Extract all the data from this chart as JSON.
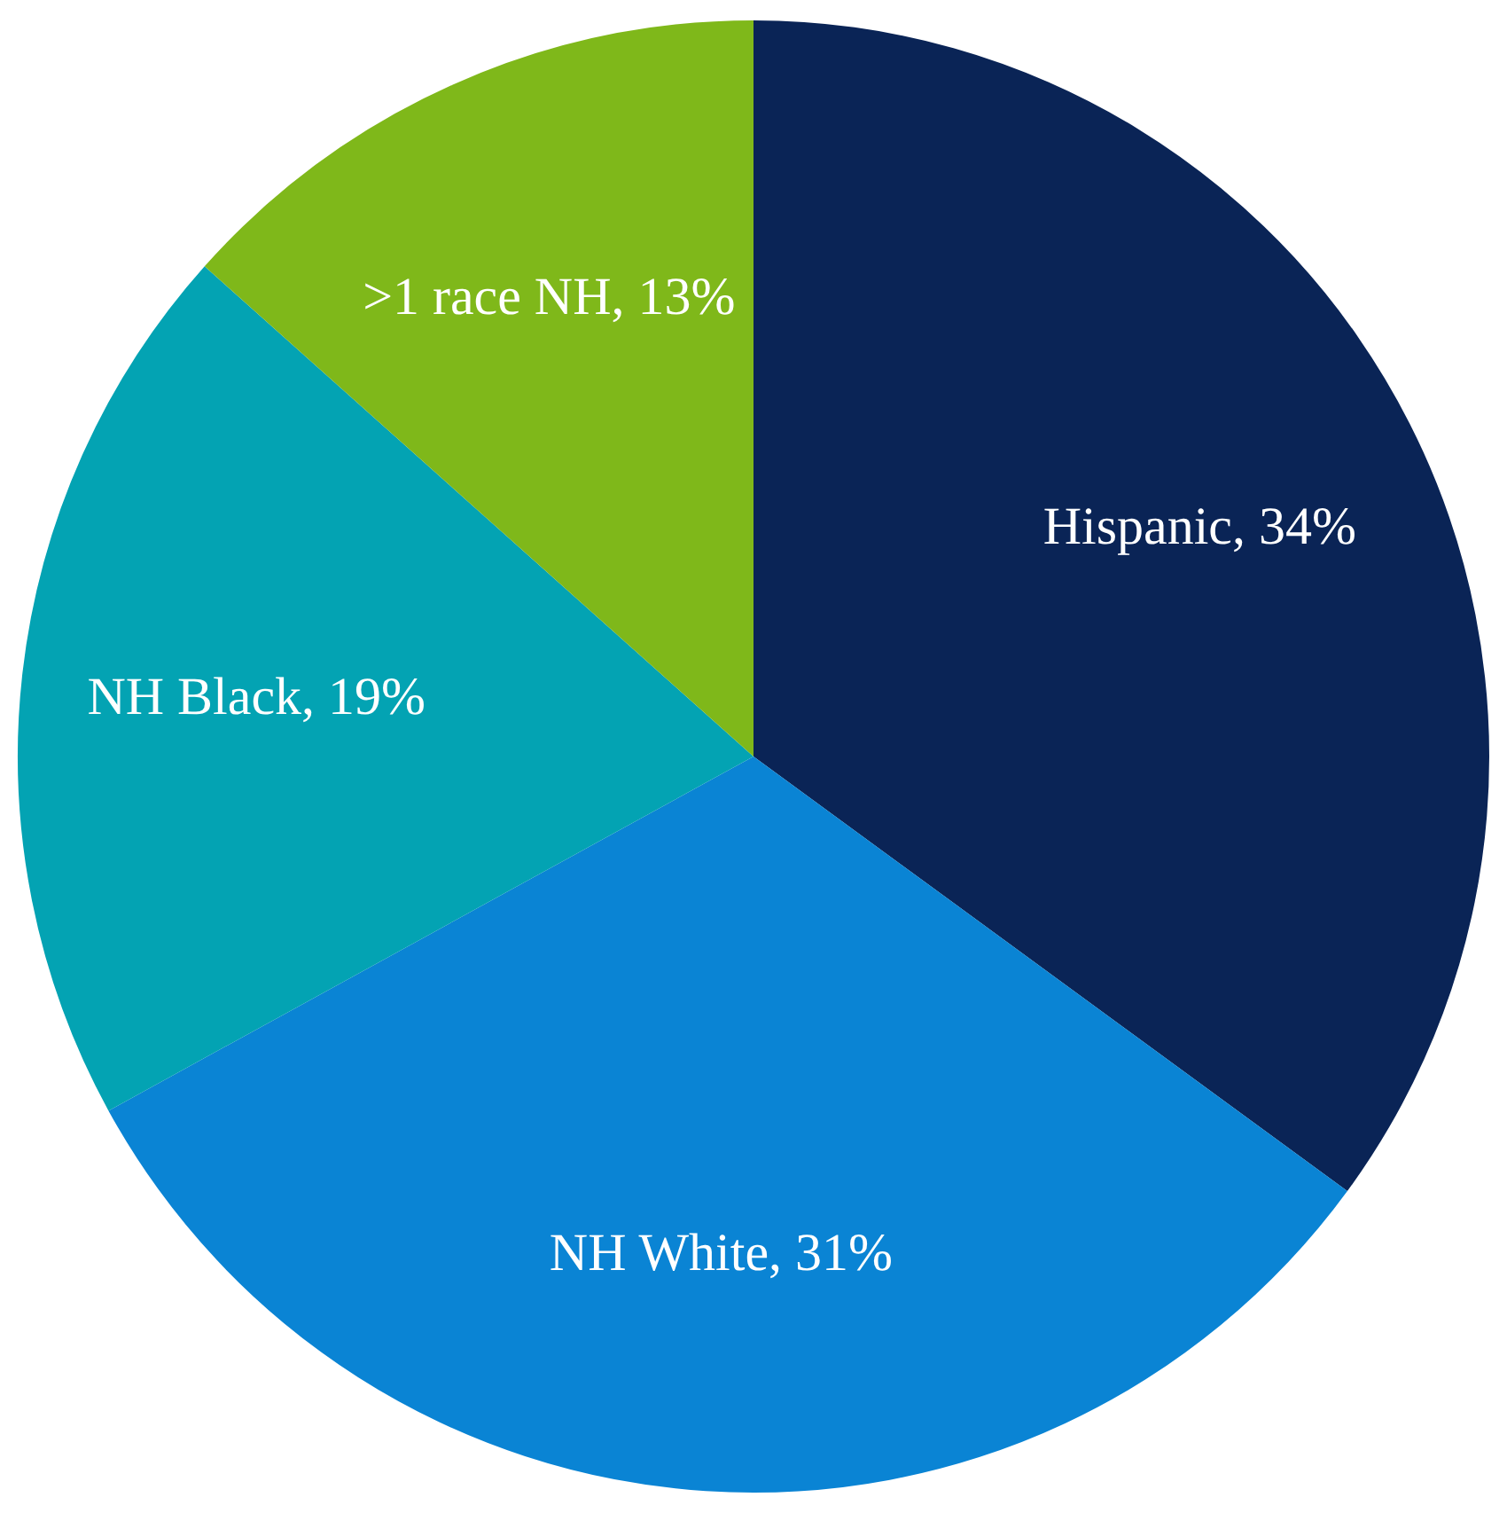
{
  "chart_data": {
    "type": "pie",
    "categories": [
      "Hispanic",
      "NH White",
      "NH Black",
      ">1 race NH"
    ],
    "values": [
      34,
      31,
      19,
      13
    ],
    "colors": [
      "#0a2456",
      "#0a84d4",
      "#03a3b3",
      "#7fb81a"
    ],
    "value_labels": [
      "34%",
      "31%",
      "19%",
      "13%"
    ],
    "legend": false
  }
}
